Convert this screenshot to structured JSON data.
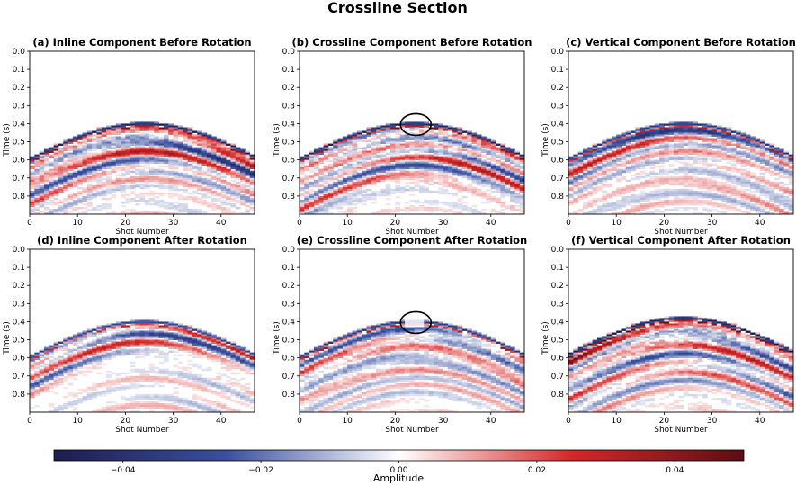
{
  "figure": {
    "suptitle": "Crossline Section",
    "colorbar": {
      "label": "Amplitude",
      "range": [
        -0.05,
        0.05
      ],
      "ticks": [
        -0.04,
        -0.02,
        0.0,
        0.02,
        0.04
      ],
      "tick_labels": [
        "−0.04",
        "−0.02",
        "0.00",
        "0.02",
        "0.04"
      ],
      "colormap": [
        "#1d1d4f",
        "#3a4fa0",
        "#ffffff",
        "#d62728",
        "#5c0d14"
      ]
    }
  },
  "chart_data": [
    {
      "type": "heatmap",
      "title": "(a) Inline Component Before Rotation",
      "xlabel": "Shot Number",
      "ylabel": "Time (s)",
      "xlim": [
        0,
        47
      ],
      "ylim": [
        0.0,
        0.9
      ],
      "xticks": [
        0,
        10,
        20,
        30,
        40
      ],
      "yticks": [
        0.0,
        0.1,
        0.2,
        0.3,
        0.4,
        0.5,
        0.6,
        0.7,
        0.8
      ],
      "ytick_labels": [
        "0.0",
        "0.1",
        "0.2",
        "0.3",
        "0.4",
        "0.5",
        "0.6",
        "0.7",
        "0.8"
      ],
      "apex_shot": 24,
      "apex_time": 0.4,
      "intensity": 1.0,
      "highlight": false
    },
    {
      "type": "heatmap",
      "title": "(b) Crossline Component Before Rotation",
      "xlabel": "Shot Number",
      "ylabel": "Time (s)",
      "xlim": [
        0,
        47
      ],
      "ylim": [
        0.0,
        0.9
      ],
      "xticks": [
        0,
        10,
        20,
        30,
        40
      ],
      "yticks": [
        0.0,
        0.1,
        0.2,
        0.3,
        0.4,
        0.5,
        0.6,
        0.7,
        0.8
      ],
      "ytick_labels": [
        "0.0",
        "0.1",
        "0.2",
        "0.3",
        "0.4",
        "0.5",
        "0.6",
        "0.7",
        "0.8"
      ],
      "apex_shot": 24,
      "apex_time": 0.4,
      "intensity": 1.0,
      "highlight": true
    },
    {
      "type": "heatmap",
      "title": "(c) Vertical Component Before Rotation",
      "xlabel": "Shot Number",
      "ylabel": "Time (s)",
      "xlim": [
        0,
        47
      ],
      "ylim": [
        0.0,
        0.9
      ],
      "xticks": [
        0,
        10,
        20,
        30,
        40
      ],
      "yticks": [
        0.0,
        0.1,
        0.2,
        0.3,
        0.4,
        0.5,
        0.6,
        0.7,
        0.8
      ],
      "ytick_labels": [
        "0.0",
        "0.1",
        "0.2",
        "0.3",
        "0.4",
        "0.5",
        "0.6",
        "0.7",
        "0.8"
      ],
      "apex_shot": 24,
      "apex_time": 0.4,
      "intensity": 0.8,
      "highlight": false
    },
    {
      "type": "heatmap",
      "title": "(d) Inline Component After Rotation",
      "xlabel": "Shot Number",
      "ylabel": "Time (s)",
      "xlim": [
        0,
        47
      ],
      "ylim": [
        0.0,
        0.9
      ],
      "xticks": [
        0,
        10,
        20,
        30,
        40
      ],
      "yticks": [
        0.0,
        0.1,
        0.2,
        0.3,
        0.4,
        0.5,
        0.6,
        0.7,
        0.8
      ],
      "ytick_labels": [
        "0.0",
        "0.1",
        "0.2",
        "0.3",
        "0.4",
        "0.5",
        "0.6",
        "0.7",
        "0.8"
      ],
      "apex_shot": 24,
      "apex_time": 0.4,
      "intensity": 0.7,
      "highlight": false
    },
    {
      "type": "heatmap",
      "title": "(e) Crossline Component After Rotation",
      "xlabel": "Shot Number",
      "ylabel": "Time (s)",
      "xlim": [
        0,
        47
      ],
      "ylim": [
        0.0,
        0.9
      ],
      "xticks": [
        0,
        10,
        20,
        30,
        40
      ],
      "yticks": [
        0.0,
        0.1,
        0.2,
        0.3,
        0.4,
        0.5,
        0.6,
        0.7,
        0.8
      ],
      "ytick_labels": [
        "0.0",
        "0.1",
        "0.2",
        "0.3",
        "0.4",
        "0.5",
        "0.6",
        "0.7",
        "0.8"
      ],
      "apex_shot": 24,
      "apex_time": 0.4,
      "intensity": 0.8,
      "highlight": true
    },
    {
      "type": "heatmap",
      "title": "(f) Vertical Component After Rotation",
      "xlabel": "Shot Number",
      "ylabel": "Time (s)",
      "xlim": [
        0,
        47
      ],
      "ylim": [
        0.0,
        0.9
      ],
      "xticks": [
        0,
        10,
        20,
        30,
        40
      ],
      "yticks": [
        0.0,
        0.1,
        0.2,
        0.3,
        0.4,
        0.5,
        0.6,
        0.7,
        0.8
      ],
      "ytick_labels": [
        "0.0",
        "0.1",
        "0.2",
        "0.3",
        "0.4",
        "0.5",
        "0.6",
        "0.7",
        "0.8"
      ],
      "apex_shot": 24,
      "apex_time": 0.38,
      "intensity": 1.1,
      "highlight": false
    }
  ]
}
